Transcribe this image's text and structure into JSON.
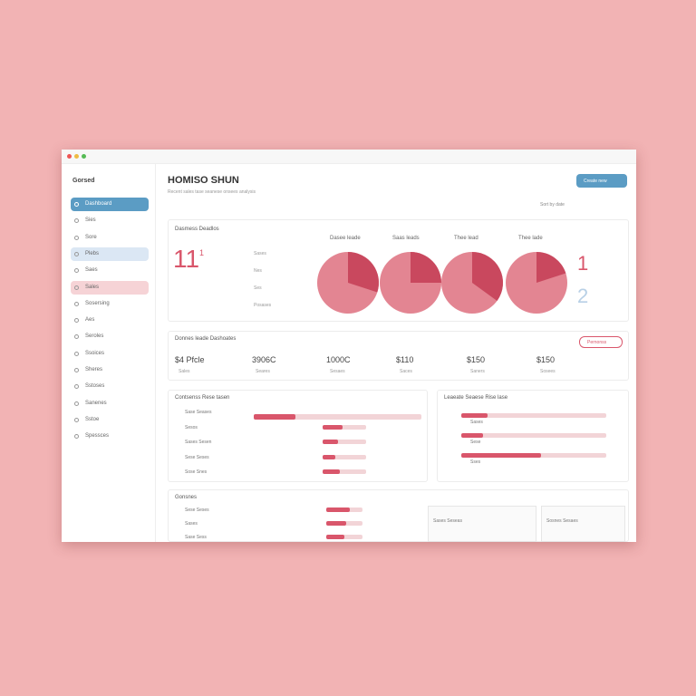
{
  "window": {
    "brand": "Gorsed"
  },
  "sidebar": {
    "items": [
      "Dashboard",
      "Sies",
      "Sore",
      "Plebs",
      "Saes",
      "Sales",
      "Sosersing",
      "Aes",
      "Seroles",
      "Ssoices",
      "Sheres",
      "Sstoses",
      "Sanenes",
      "Sstoe",
      "Spessces"
    ]
  },
  "header": {
    "title": "HOMISO SHUN",
    "subtitle": "Recent sales tase seanese onsees analysis",
    "button": "Create new",
    "filter": "Sort by date"
  },
  "overview": {
    "title": "Dasmess Deadlos",
    "big_number": "11",
    "small_number": "1",
    "rows": [
      "Sases",
      "Nes",
      "Ses",
      "Posases"
    ],
    "pies": [
      {
        "label": "Dasee leade",
        "value": 30
      },
      {
        "label": "Saas leads",
        "value": 25
      },
      {
        "label": "Thee lead",
        "value": 35
      },
      {
        "label": "Thee lade",
        "value": 20
      }
    ],
    "right_numbers": [
      "1",
      "2"
    ]
  },
  "summary": {
    "title": "Donnes leade Dashoates",
    "button": "Pernonss",
    "stats": [
      {
        "value": "$4 Pfcle",
        "label": "Sales"
      },
      {
        "value": "3906C",
        "label": "Seares"
      },
      {
        "value": "1000C",
        "label": "Sesaes"
      },
      {
        "value": "$110",
        "label": "Saces"
      },
      {
        "value": "$150",
        "label": "Saners"
      },
      {
        "value": "$150",
        "label": "Sosees"
      }
    ]
  },
  "conversions": {
    "title": "Contsenss Rese tasen",
    "rows": [
      {
        "label": "Sase Seases",
        "value": 25
      },
      {
        "label": "Sesos",
        "value": 45
      },
      {
        "label": "Sases Sesen",
        "value": 35
      },
      {
        "label": "Sese Seses",
        "value": 30
      },
      {
        "label": "Sose Snes",
        "value": 40
      }
    ]
  },
  "leads": {
    "title": "Leaeate Seaese Rise lase",
    "rows": [
      {
        "label": "Sases",
        "value": 18
      },
      {
        "label": "Sese",
        "value": 15
      },
      {
        "label": "Sses",
        "value": 55
      }
    ]
  },
  "channels": {
    "title": "Gonsnes",
    "rows": [
      {
        "label": "Sese Seses",
        "value": 65
      },
      {
        "label": "Sases",
        "value": 55
      },
      {
        "label": "Sase Sess",
        "value": 50
      }
    ],
    "boxes": [
      "Sases Seseas",
      "Sosnes Sesaes"
    ]
  }
}
